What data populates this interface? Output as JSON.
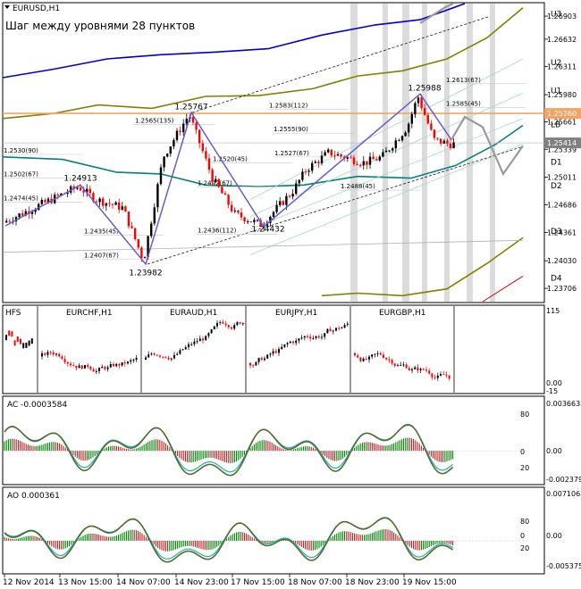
{
  "header": {
    "symbol": "EURUSD,H1",
    "subtitle": "Шаг между уровнями 28 пунктов"
  },
  "colors": {
    "bull": "#000000",
    "bear": "#ff0000",
    "ma": "#008080",
    "band": "#808000",
    "upper_band": "#0000c8",
    "zigzag": "#6a5acd",
    "orange": "#f4a460",
    "gray": "#808080"
  },
  "chart_data": [
    {
      "type": "candlestick",
      "name": "EURUSD,H1",
      "y_range": [
        1.2355,
        1.2705
      ],
      "price_ticks": [
        "1.26903",
        "1.26632",
        "1.26311",
        "1.25980",
        "1.25661",
        "1.25339",
        "1.25011",
        "1.24686",
        "1.24361",
        "1.24030",
        "1.23706"
      ],
      "price_markers": [
        {
          "label": "1.25760",
          "price": 1.2576,
          "color": "#f4a460"
        },
        {
          "label": "1.25414",
          "price": 1.25414,
          "color": "#808080"
        }
      ],
      "level_labels": [
        {
          "label": "U3",
          "price": 1.2693
        },
        {
          "label": "U2",
          "price": 1.2636
        },
        {
          "label": "U1",
          "price": 1.2603
        },
        {
          "label": "LB",
          "price": 1.2563
        },
        {
          "label": "D1",
          "price": 1.2519
        },
        {
          "label": "D2",
          "price": 1.2491
        },
        {
          "label": "D3",
          "price": 1.2438
        },
        {
          "label": "D4",
          "price": 1.2383
        }
      ],
      "pivot_labels": [
        {
          "label": "1.24913",
          "price": 1.2497
        },
        {
          "label": "1.23982",
          "price": 1.2386
        },
        {
          "label": "1.25767",
          "price": 1.2581
        },
        {
          "label": "1.24432",
          "price": 1.2437
        },
        {
          "label": "1.25988",
          "price": 1.2603
        }
      ],
      "retrace_labels": [
        "1.2530(90)",
        "1.2502(67)",
        "1.2474(45)",
        "1.2435(45)",
        "1.2407(67)",
        "1.2565(135)",
        "1.2492(67)",
        "1.2520(45)",
        "1.2436(112)",
        "1.2583(112)",
        "1.2555(90)",
        "1.2527(67)",
        "1.2488(45)",
        "1.2613(67)",
        "1.2585(45)"
      ]
    },
    {
      "type": "multi-pair",
      "name": "HFS",
      "panes": [
        "EURCHF,H1",
        "EURAUD,H1",
        "EURJPY,H1",
        "EURGBP,H1"
      ],
      "y_range": [
        -15,
        115
      ],
      "ticks": [
        "115",
        "0.00",
        "-15"
      ]
    },
    {
      "type": "histogram-line",
      "name": "AC",
      "value_label": "AC -0.0003584",
      "y_range": [
        -0.0023795,
        0.0036635
      ],
      "ticks": [
        "0.0036635",
        "0.00",
        "-0.0023795"
      ],
      "levels": [
        "80",
        "0",
        "20"
      ]
    },
    {
      "type": "histogram-line",
      "name": "AO",
      "value_label": "AO 0.000361",
      "y_range": [
        -0.0053755,
        0.0071065
      ],
      "ticks": [
        "0.0071065",
        "0.00",
        "-0.0053755"
      ],
      "levels": [
        "80",
        "0",
        "20"
      ]
    }
  ],
  "time_axis": [
    "12 Nov 2014",
    "13 Nov 15:00",
    "14 Nov 07:00",
    "14 Nov 23:00",
    "17 Nov 15:00",
    "18 Nov 07:00",
    "18 Nov 23:00",
    "19 Nov 15:00"
  ]
}
